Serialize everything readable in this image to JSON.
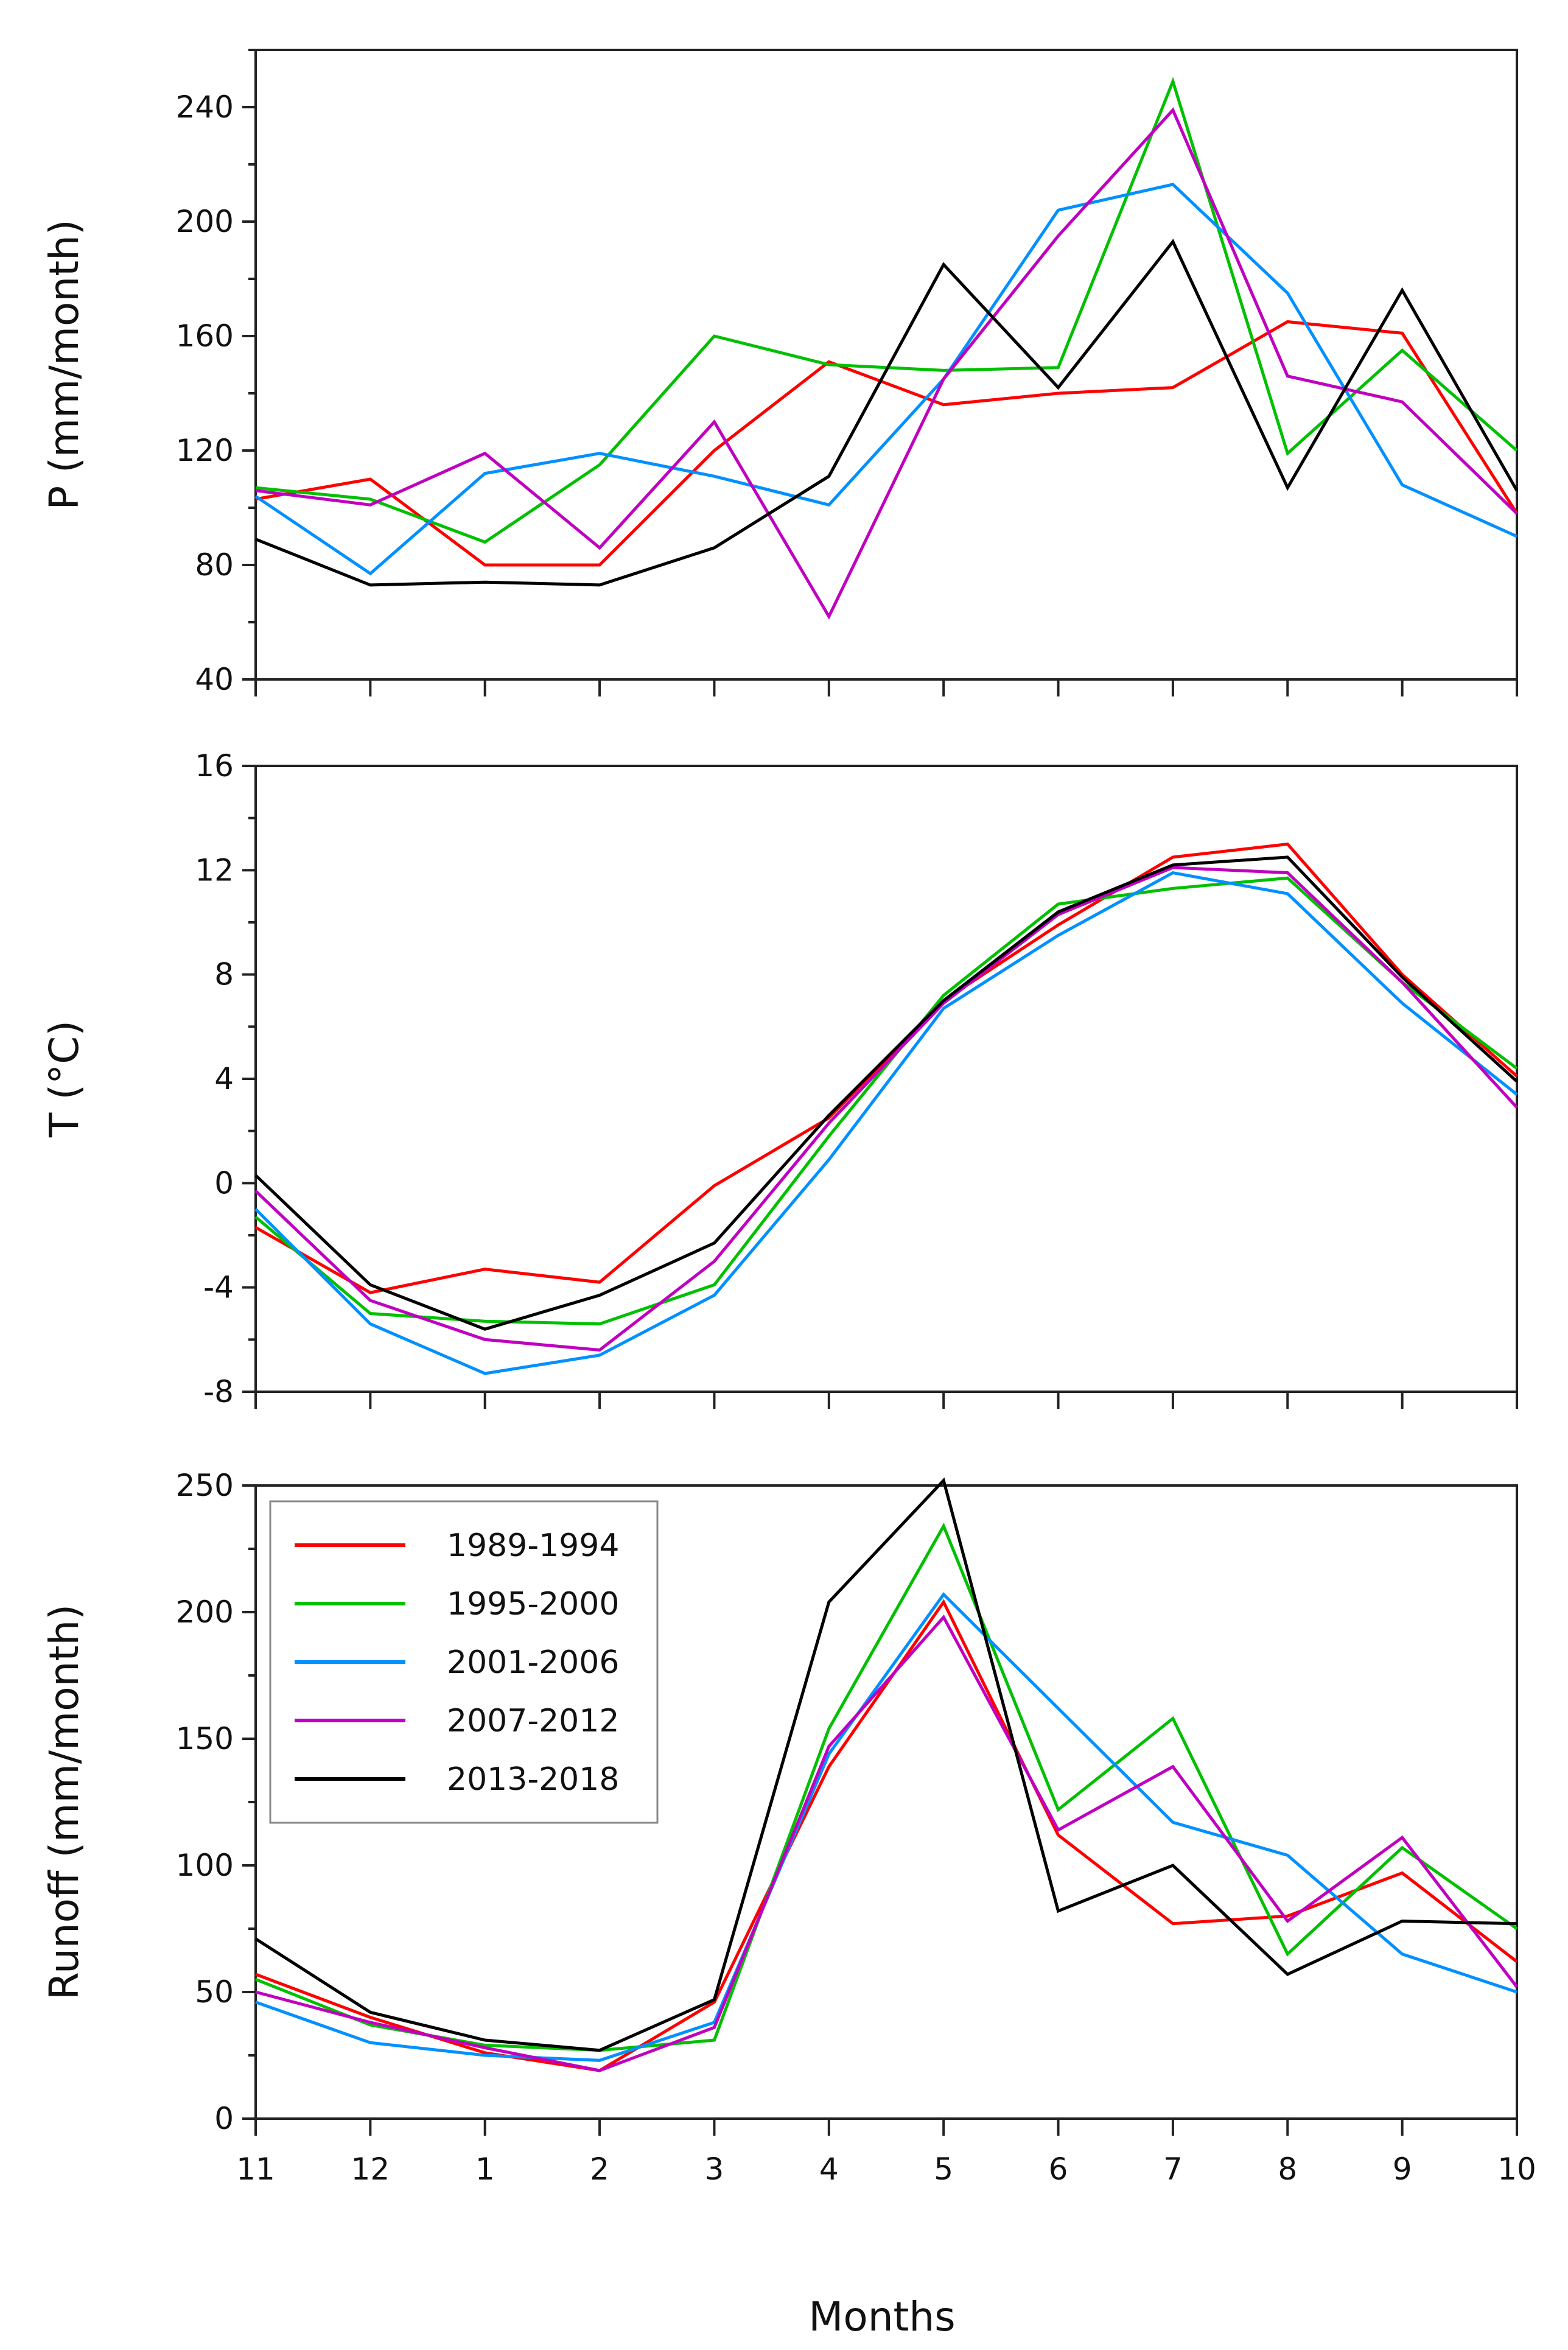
{
  "xlabel": "Months",
  "categories": [
    "11",
    "12",
    "1",
    "2",
    "3",
    "4",
    "5",
    "6",
    "7",
    "8",
    "9",
    "10"
  ],
  "legend": {
    "location": "upper-left",
    "panel": 2,
    "entries": [
      {
        "label": "1989-1994",
        "color": "#ff0000"
      },
      {
        "label": "1995-2000",
        "color": "#00c000"
      },
      {
        "label": "2001-2006",
        "color": "#0090ff"
      },
      {
        "label": "2007-2012",
        "color": "#c000c0"
      },
      {
        "label": "2013-2018",
        "color": "#000000"
      }
    ]
  },
  "chart_data": [
    {
      "type": "line",
      "ylabel": "P (mm/month)",
      "ylim": [
        40,
        260
      ],
      "yticks": [
        40,
        80,
        120,
        160,
        200,
        240
      ],
      "minor_step": 20,
      "categories": [
        "11",
        "12",
        "1",
        "2",
        "3",
        "4",
        "5",
        "6",
        "7",
        "8",
        "9",
        "10"
      ],
      "series": [
        {
          "name": "1989-1994",
          "color": "#ff0000",
          "values": [
            103,
            110,
            80,
            80,
            120,
            151,
            136,
            140,
            142,
            165,
            161,
            98
          ]
        },
        {
          "name": "1995-2000",
          "color": "#00c000",
          "values": [
            107,
            103,
            88,
            115,
            160,
            150,
            148,
            149,
            249,
            119,
            155,
            120
          ]
        },
        {
          "name": "2001-2006",
          "color": "#0090ff",
          "values": [
            104,
            77,
            112,
            119,
            111,
            101,
            145,
            204,
            213,
            175,
            108,
            90
          ]
        },
        {
          "name": "2007-2012",
          "color": "#c000c0",
          "values": [
            106,
            101,
            119,
            86,
            130,
            62,
            145,
            195,
            239,
            146,
            137,
            98
          ]
        },
        {
          "name": "2013-2018",
          "color": "#000000",
          "values": [
            89,
            73,
            74,
            73,
            86,
            111,
            185,
            142,
            193,
            107,
            176,
            106
          ]
        }
      ]
    },
    {
      "type": "line",
      "ylabel": "T (°C)",
      "ylim": [
        -8,
        16
      ],
      "yticks": [
        -8,
        -4,
        0,
        4,
        8,
        12,
        16
      ],
      "minor_step": 2,
      "categories": [
        "11",
        "12",
        "1",
        "2",
        "3",
        "4",
        "5",
        "6",
        "7",
        "8",
        "9",
        "10"
      ],
      "series": [
        {
          "name": "1989-1994",
          "color": "#ff0000",
          "values": [
            -1.7,
            -4.2,
            -3.3,
            -3.8,
            -0.1,
            2.5,
            7.0,
            9.9,
            12.5,
            13.0,
            8.0,
            4.1
          ]
        },
        {
          "name": "1995-2000",
          "color": "#00c000",
          "values": [
            -1.3,
            -5.0,
            -5.3,
            -5.4,
            -3.9,
            1.8,
            7.2,
            10.7,
            11.3,
            11.7,
            7.7,
            4.4
          ]
        },
        {
          "name": "2001-2006",
          "color": "#0090ff",
          "values": [
            -1.0,
            -5.4,
            -7.3,
            -6.6,
            -4.3,
            0.9,
            6.7,
            9.5,
            11.9,
            11.1,
            6.9,
            3.4
          ]
        },
        {
          "name": "2007-2012",
          "color": "#c000c0",
          "values": [
            -0.3,
            -4.5,
            -6.0,
            -6.4,
            -3.0,
            2.3,
            6.9,
            10.3,
            12.1,
            11.9,
            7.7,
            2.9
          ]
        },
        {
          "name": "2013-2018",
          "color": "#000000",
          "values": [
            0.3,
            -3.9,
            -5.6,
            -4.3,
            -2.3,
            2.6,
            7.0,
            10.4,
            12.2,
            12.5,
            7.9,
            3.9
          ]
        }
      ]
    },
    {
      "type": "line",
      "ylabel": "Runoff (mm/month)",
      "ylim": [
        0,
        250
      ],
      "yticks": [
        0,
        50,
        100,
        150,
        200,
        250
      ],
      "minor_step": 25,
      "categories": [
        "11",
        "12",
        "1",
        "2",
        "3",
        "4",
        "5",
        "6",
        "7",
        "8",
        "9",
        "10"
      ],
      "series": [
        {
          "name": "1989-1994",
          "color": "#ff0000",
          "values": [
            57,
            40,
            26,
            19,
            46,
            139,
            204,
            112,
            77,
            80,
            97,
            62
          ]
        },
        {
          "name": "1995-2000",
          "color": "#00c000",
          "values": [
            55,
            37,
            29,
            27,
            31,
            154,
            234,
            122,
            158,
            65,
            107,
            75
          ]
        },
        {
          "name": "2001-2006",
          "color": "#0090ff",
          "values": [
            46,
            30,
            25,
            23,
            38,
            144,
            207,
            162,
            117,
            104,
            65,
            50
          ]
        },
        {
          "name": "2007-2012",
          "color": "#c000c0",
          "values": [
            50,
            38,
            28,
            19,
            36,
            147,
            198,
            114,
            139,
            78,
            111,
            52
          ]
        },
        {
          "name": "2013-2018",
          "color": "#000000",
          "values": [
            71,
            42,
            31,
            27,
            47,
            204,
            252,
            82,
            100,
            57,
            78,
            77
          ]
        }
      ]
    }
  ]
}
